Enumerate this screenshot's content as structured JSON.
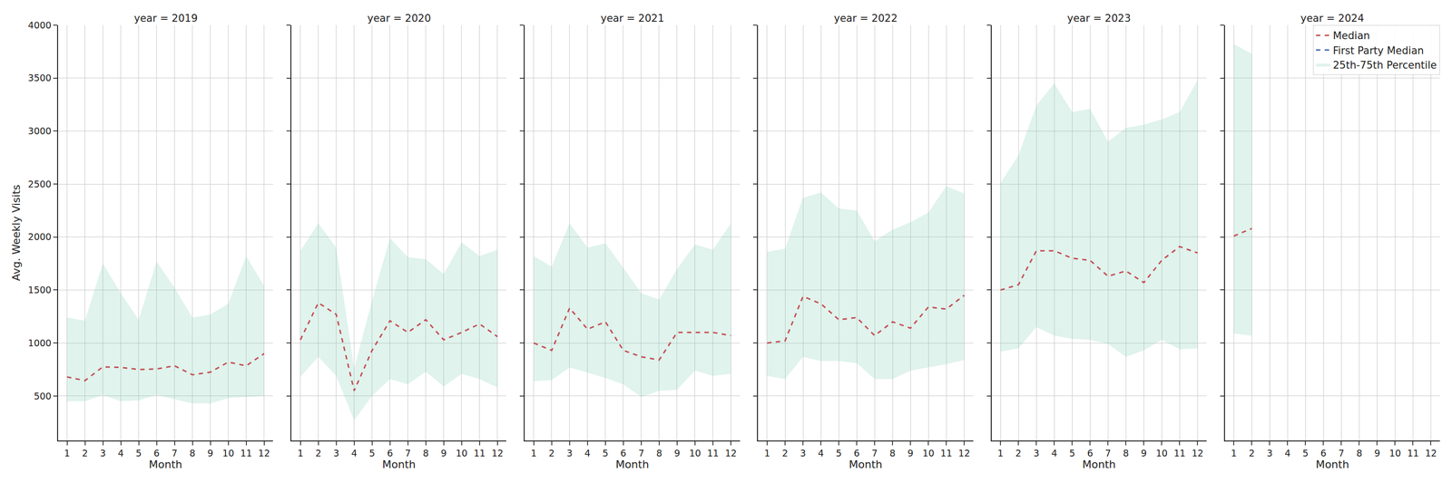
{
  "chart_data": [
    {
      "type": "line",
      "title": "year = 2019",
      "x_label": "Month",
      "y_label": "Avg. Weekly Visits",
      "x": [
        1,
        2,
        3,
        4,
        5,
        6,
        7,
        8,
        9,
        10,
        11,
        12
      ],
      "xlim": [
        0.5,
        12.5
      ],
      "xticks": [
        1,
        2,
        3,
        4,
        5,
        6,
        7,
        8,
        9,
        10,
        11,
        12
      ],
      "ylim": [
        80,
        4000
      ],
      "yticks": [
        500,
        1000,
        1500,
        2000,
        2500,
        3000,
        3500,
        4000
      ],
      "grid": true,
      "series": [
        {
          "name": "Median",
          "color": "#c44e52",
          "line_style": "dashed",
          "values": [
            680,
            645,
            775,
            770,
            750,
            755,
            785,
            700,
            725,
            820,
            785,
            900
          ]
        },
        {
          "name": "First Party Median",
          "color": "#4c72b0",
          "line_style": "dashed",
          "values": [
            null,
            null,
            null,
            null,
            null,
            null,
            null,
            null,
            null,
            null,
            null,
            null
          ]
        },
        {
          "name": "25th-75th Percentile",
          "type": "band",
          "color": "#66c2a5",
          "lower": [
            450,
            450,
            510,
            450,
            460,
            510,
            470,
            430,
            430,
            480,
            490,
            500
          ],
          "upper": [
            1240,
            1210,
            1750,
            1470,
            1220,
            1770,
            1520,
            1240,
            1270,
            1370,
            1820,
            1540
          ]
        }
      ]
    },
    {
      "type": "line",
      "title": "year = 2020",
      "x_label": "Month",
      "tick_labels": "x",
      "x": [
        1,
        2,
        3,
        4,
        5,
        6,
        7,
        8,
        9,
        10,
        11,
        12
      ],
      "xlim": [
        0.5,
        12.5
      ],
      "xticks": [
        1,
        2,
        3,
        4,
        5,
        6,
        7,
        8,
        9,
        10,
        11,
        12
      ],
      "ylim": [
        80,
        4000
      ],
      "yticks": [
        500,
        1000,
        1500,
        2000,
        2500,
        3000,
        3500,
        4000
      ],
      "grid": true,
      "series": [
        {
          "name": "Median",
          "color": "#c44e52",
          "line_style": "dashed",
          "values": [
            1030,
            1380,
            1270,
            550,
            930,
            1210,
            1100,
            1220,
            1030,
            1100,
            1180,
            1060
          ]
        },
        {
          "name": "First Party Median",
          "color": "#4c72b0",
          "line_style": "dashed",
          "values": [
            null,
            null,
            null,
            null,
            null,
            null,
            null,
            null,
            null,
            null,
            null,
            null
          ]
        },
        {
          "name": "25th-75th Percentile",
          "type": "band",
          "color": "#66c2a5",
          "lower": [
            680,
            870,
            690,
            270,
            500,
            660,
            610,
            730,
            590,
            710,
            660,
            580
          ],
          "upper": [
            1870,
            2130,
            1900,
            760,
            1400,
            1990,
            1810,
            1790,
            1650,
            1950,
            1820,
            1880
          ]
        }
      ]
    },
    {
      "type": "line",
      "title": "year = 2021",
      "x_label": "Month",
      "tick_labels": "x",
      "x": [
        1,
        2,
        3,
        4,
        5,
        6,
        7,
        8,
        9,
        10,
        11,
        12
      ],
      "xlim": [
        0.5,
        12.5
      ],
      "xticks": [
        1,
        2,
        3,
        4,
        5,
        6,
        7,
        8,
        9,
        10,
        11,
        12
      ],
      "ylim": [
        80,
        4000
      ],
      "yticks": [
        500,
        1000,
        1500,
        2000,
        2500,
        3000,
        3500,
        4000
      ],
      "grid": true,
      "series": [
        {
          "name": "Median",
          "color": "#c44e52",
          "line_style": "dashed",
          "values": [
            1000,
            930,
            1330,
            1130,
            1200,
            930,
            870,
            840,
            1100,
            1100,
            1100,
            1070
          ]
        },
        {
          "name": "First Party Median",
          "color": "#4c72b0",
          "line_style": "dashed",
          "values": [
            null,
            null,
            null,
            null,
            null,
            null,
            null,
            null,
            null,
            null,
            null,
            null
          ]
        },
        {
          "name": "25th-75th Percentile",
          "type": "band",
          "color": "#66c2a5",
          "lower": [
            640,
            650,
            770,
            720,
            670,
            610,
            490,
            550,
            560,
            740,
            690,
            710
          ],
          "upper": [
            1820,
            1720,
            2130,
            1900,
            1940,
            1710,
            1470,
            1410,
            1700,
            1930,
            1880,
            2130
          ]
        }
      ]
    },
    {
      "type": "line",
      "title": "year = 2022",
      "x_label": "Month",
      "tick_labels": "x",
      "x": [
        1,
        2,
        3,
        4,
        5,
        6,
        7,
        8,
        9,
        10,
        11,
        12
      ],
      "xlim": [
        0.5,
        12.5
      ],
      "xticks": [
        1,
        2,
        3,
        4,
        5,
        6,
        7,
        8,
        9,
        10,
        11,
        12
      ],
      "ylim": [
        80,
        4000
      ],
      "yticks": [
        500,
        1000,
        1500,
        2000,
        2500,
        3000,
        3500,
        4000
      ],
      "grid": true,
      "series": [
        {
          "name": "Median",
          "color": "#c44e52",
          "line_style": "dashed",
          "values": [
            1000,
            1020,
            1440,
            1370,
            1220,
            1240,
            1070,
            1200,
            1140,
            1340,
            1320,
            1450
          ]
        },
        {
          "name": "First Party Median",
          "color": "#4c72b0",
          "line_style": "dashed",
          "values": [
            null,
            null,
            null,
            null,
            null,
            null,
            null,
            null,
            null,
            null,
            null,
            null
          ]
        },
        {
          "name": "25th-75th Percentile",
          "type": "band",
          "color": "#66c2a5",
          "lower": [
            690,
            660,
            870,
            830,
            830,
            810,
            660,
            660,
            740,
            770,
            800,
            840
          ],
          "upper": [
            1860,
            1890,
            2370,
            2420,
            2270,
            2250,
            1960,
            2070,
            2140,
            2230,
            2480,
            2410
          ]
        }
      ]
    },
    {
      "type": "line",
      "title": "year = 2023",
      "x_label": "Month",
      "tick_labels": "x",
      "x": [
        1,
        2,
        3,
        4,
        5,
        6,
        7,
        8,
        9,
        10,
        11,
        12
      ],
      "xlim": [
        0.5,
        12.5
      ],
      "xticks": [
        1,
        2,
        3,
        4,
        5,
        6,
        7,
        8,
        9,
        10,
        11,
        12
      ],
      "ylim": [
        80,
        4000
      ],
      "yticks": [
        500,
        1000,
        1500,
        2000,
        2500,
        3000,
        3500,
        4000
      ],
      "grid": true,
      "series": [
        {
          "name": "Median",
          "color": "#c44e52",
          "line_style": "dashed",
          "values": [
            1500,
            1550,
            1870,
            1870,
            1800,
            1780,
            1630,
            1680,
            1570,
            1780,
            1910,
            1850
          ]
        },
        {
          "name": "First Party Median",
          "color": "#4c72b0",
          "line_style": "dashed",
          "values": [
            null,
            null,
            null,
            null,
            null,
            null,
            null,
            null,
            null,
            null,
            null,
            null
          ]
        },
        {
          "name": "25th-75th Percentile",
          "type": "band",
          "color": "#66c2a5",
          "lower": [
            920,
            950,
            1150,
            1070,
            1040,
            1030,
            990,
            870,
            930,
            1030,
            940,
            950
          ],
          "upper": [
            2510,
            2770,
            3240,
            3450,
            3180,
            3210,
            2900,
            3030,
            3060,
            3110,
            3180,
            3480
          ]
        }
      ]
    },
    {
      "type": "line",
      "title": "year = 2024",
      "x_label": "Month",
      "tick_labels": "x",
      "legend": "upper right",
      "x": [
        1,
        2,
        3,
        4,
        5,
        6,
        7,
        8,
        9,
        10,
        11,
        12
      ],
      "xlim": [
        0.5,
        12.5
      ],
      "xticks": [
        1,
        2,
        3,
        4,
        5,
        6,
        7,
        8,
        9,
        10,
        11,
        12
      ],
      "ylim": [
        80,
        4000
      ],
      "yticks": [
        500,
        1000,
        1500,
        2000,
        2500,
        3000,
        3500,
        4000
      ],
      "grid": true,
      "series": [
        {
          "name": "Median",
          "color": "#c44e52",
          "line_style": "dashed",
          "values": [
            2010,
            2080,
            null,
            null,
            null,
            null,
            null,
            null,
            null,
            null,
            null,
            null
          ]
        },
        {
          "name": "First Party Median",
          "color": "#4c72b0",
          "line_style": "dashed",
          "values": [
            null,
            null,
            null,
            null,
            null,
            null,
            null,
            null,
            null,
            null,
            null,
            null
          ]
        },
        {
          "name": "25th-75th Percentile",
          "type": "band",
          "color": "#66c2a5",
          "lower": [
            1090,
            1070,
            null,
            null,
            null,
            null,
            null,
            null,
            null,
            null,
            null,
            null
          ],
          "upper": [
            3820,
            3730,
            null,
            null,
            null,
            null,
            null,
            null,
            null,
            null,
            null,
            null
          ]
        }
      ]
    }
  ]
}
